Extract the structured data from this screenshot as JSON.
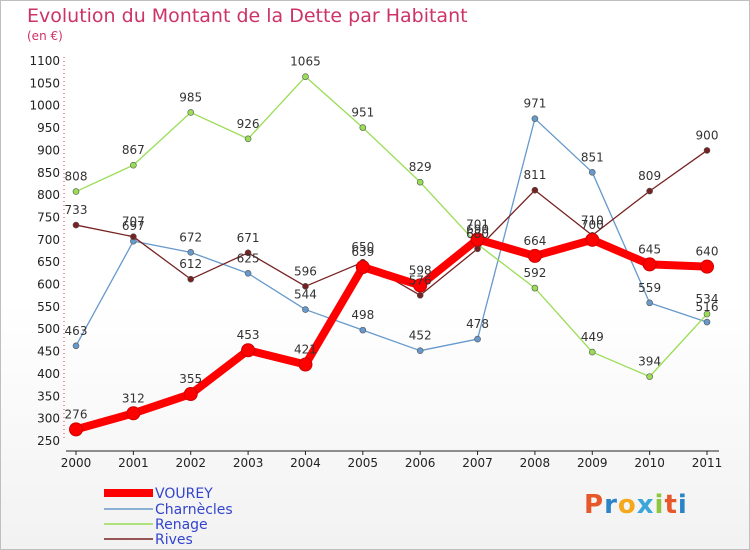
{
  "title": "Evolution du Montant de la Dette par Habitant",
  "subtitle": "(en €)",
  "logo": "Proxiti",
  "logo_colors": [
    "#e8572a",
    "#2a84c6",
    "#f4a81c",
    "#3aa6d9",
    "#8dc63f",
    "#e8572a",
    "#2a84c6"
  ],
  "chart_data": {
    "type": "line",
    "title": "Evolution du Montant de la Dette par Habitant",
    "ylabel": "(en €)",
    "xlabel": "",
    "x": [
      "2000",
      "2001",
      "2002",
      "2003",
      "2004",
      "2005",
      "2006",
      "2007",
      "2008",
      "2009",
      "2010",
      "2011"
    ],
    "ylim": [
      250,
      1100
    ],
    "yticks": [
      250,
      300,
      350,
      400,
      450,
      500,
      550,
      600,
      650,
      700,
      750,
      800,
      850,
      900,
      950,
      1000,
      1050,
      1100
    ],
    "grid": false,
    "legend_position": "bottom-left",
    "series": [
      {
        "name": "VOUREY",
        "color": "#ff0000",
        "values": [
          276,
          312,
          355,
          453,
          421,
          639,
          598,
          701,
          664,
          700,
          645,
          640
        ]
      },
      {
        "name": "Charnècles",
        "color": "#6699cc",
        "values": [
          463,
          697,
          672,
          625,
          544,
          498,
          452,
          478,
          971,
          851,
          559,
          516
        ]
      },
      {
        "name": "Renage",
        "color": "#99dd55",
        "values": [
          808,
          867,
          985,
          926,
          1065,
          951,
          829,
          690,
          592,
          449,
          394,
          534
        ]
      },
      {
        "name": "Rives",
        "color": "#772222",
        "values": [
          733,
          707,
          612,
          671,
          596,
          650,
          576,
          680,
          811,
          710,
          809,
          900
        ]
      }
    ]
  }
}
